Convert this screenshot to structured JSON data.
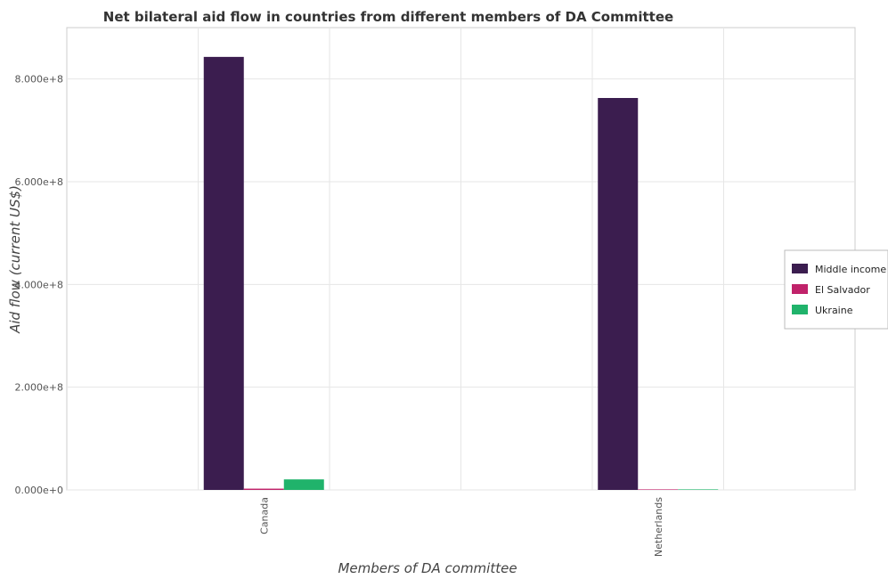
{
  "chart_data": {
    "type": "bar",
    "title": "Net bilateral aid flow in countries from different members of DA Committee",
    "xlabel": "Members of DA committee",
    "ylabel": "Aid flow (current US$)",
    "categories": [
      "Canada",
      "Netherlands"
    ],
    "series": [
      {
        "name": "Middle income",
        "color": "#3b1d4f",
        "values": [
          843000000,
          763000000
        ]
      },
      {
        "name": "El Salvador",
        "color": "#c0226a",
        "values": [
          2500000,
          300000
        ]
      },
      {
        "name": "Ukraine",
        "color": "#20b36b",
        "values": [
          20500000,
          200000
        ]
      }
    ],
    "ylim": [
      0,
      900000000
    ],
    "yticks": [
      0,
      200000000,
      400000000,
      600000000,
      800000000
    ],
    "ytick_labels": [
      "0.000e+0",
      "2.000e+8",
      "4.000e+8",
      "6.000e+8",
      "8.000e+8"
    ],
    "grid": true,
    "legend_position": "right"
  }
}
